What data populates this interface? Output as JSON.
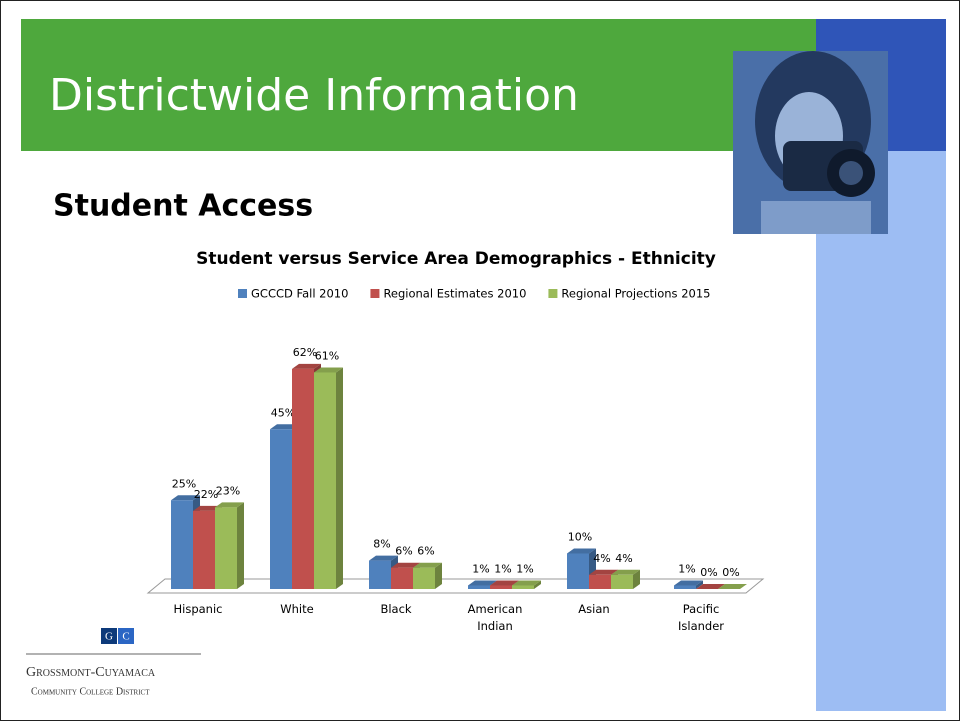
{
  "slide": {
    "title": "Districtwide Information",
    "subtitle": "Student Access",
    "logo": {
      "mark_left": "G",
      "mark_right": "C",
      "name": "Grossmont-Cuyamaca",
      "district": "Community College District"
    }
  },
  "chart_data": {
    "type": "bar",
    "title": "Student versus Service Area Demographics - Ethnicity",
    "categories": [
      "Hispanic",
      "White",
      "Black",
      "American Indian",
      "Asian",
      "Pacific Islander"
    ],
    "series": [
      {
        "name": "GCCCD Fall 2010",
        "color": "#4f81bd",
        "values": [
          25,
          45,
          8,
          1,
          10,
          1
        ],
        "value_labels": [
          "25%",
          "45%",
          "8%",
          "1%",
          "10%",
          "1%"
        ]
      },
      {
        "name": "Regional Estimates 2010",
        "color": "#c0504d",
        "values": [
          22,
          62,
          6,
          1,
          4,
          0
        ],
        "value_labels": [
          "22%",
          "62%",
          "6%",
          "1%",
          "4%",
          "0%"
        ]
      },
      {
        "name": "Regional Projections 2015",
        "color": "#9bbb59",
        "values": [
          23,
          61,
          6,
          1,
          4,
          0
        ],
        "value_labels": [
          "23%",
          "61%",
          "6%",
          "1%",
          "4%",
          "0%"
        ]
      }
    ],
    "legend": "top"
  }
}
